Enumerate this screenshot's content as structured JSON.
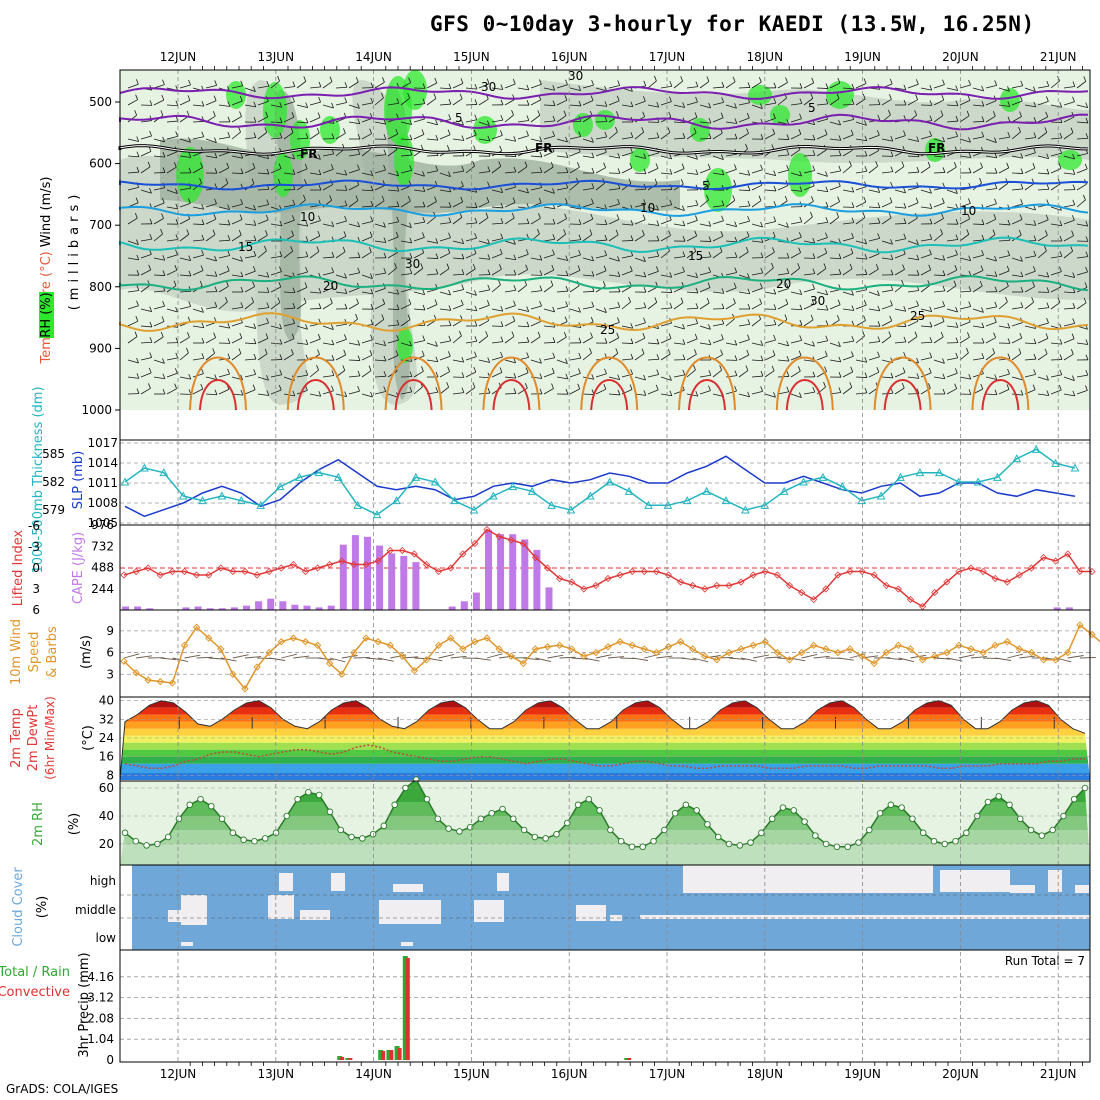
{
  "title": "GFS 0~10day 3-hourly for KAEDI (13.5W, 16.25N)",
  "footer": "GrADS: COLA/IGES",
  "colors": {
    "rh_fill": "#2ee82e",
    "temp_label": "#e05a3a",
    "wind_label": "#2a2aa0",
    "thickness": "#22b5c0",
    "slp": "#1a3acc",
    "lifted_index": "#e03838",
    "cape": "#c07ae8",
    "wind10m": "#e0962a",
    "temp_label_2m": "#e03838",
    "rh2m": "#3aa83a",
    "cloud": "#6fa8d8",
    "precip_total": "#2ea82e",
    "precip_conv": "#e03030"
  },
  "chart_data": [
    {
      "type": "heatmap",
      "panel": "upper-air",
      "ylabel_parts": [
        "RH (%)",
        "Temperature (°C)",
        "Wind (m/s)",
        "(millibars)"
      ],
      "ylim": [
        1000,
        450
      ],
      "yticks": [
        "500",
        "600",
        "700",
        "800",
        "900",
        "1000"
      ],
      "x_dates": [
        "12JUN",
        "13JUN",
        "14JUN",
        "15JUN",
        "16JUN",
        "17JUN",
        "18JUN",
        "19JUN",
        "20JUN",
        "21JUN"
      ],
      "contour_labels": [
        "FR",
        "FR",
        "FR",
        "5",
        "5",
        "5",
        "10",
        "10",
        "10",
        "15",
        "15",
        "20",
        "20",
        "25",
        "25",
        "30",
        "30",
        "30",
        "30"
      ]
    },
    {
      "type": "line",
      "panel": "thickness-slp",
      "ylabel_left": "1000-500mb Thickness (dm)",
      "ylabel_right": "SLP (mb)",
      "yticks_left": [
        "579",
        "582",
        "585"
      ],
      "yticks_right": [
        "1005",
        "1008",
        "1011",
        "1014",
        "1017"
      ],
      "ylim_slp": [
        1005,
        1017
      ],
      "series": [
        {
          "name": "SLP",
          "values": [
            1007.5,
            1006.0,
            1007.0,
            1008.0,
            1009.5,
            1010.5,
            1009.5,
            1007.5,
            1008.5,
            1011.0,
            1013.0,
            1014.5,
            1012.5,
            1010.5,
            1010.0,
            1010.5,
            1010.0,
            1008.5,
            1009.0,
            1010.5,
            1011.0,
            1010.5,
            1011.5,
            1011.0,
            1011.5,
            1012.5,
            1012.0,
            1011.0,
            1011.0,
            1012.5,
            1013.5,
            1015.0,
            1013.0,
            1011.0,
            1011.0,
            1012.0,
            1011.0,
            1010.0,
            1009.5,
            1010.5,
            1011.0,
            1009.0,
            1009.5,
            1011.0,
            1011.0,
            1009.5,
            1009.0,
            1010.0,
            1009.5,
            1009.0
          ]
        },
        {
          "name": "Thickness",
          "values": [
            582.0,
            583.5,
            583.0,
            580.5,
            580.0,
            580.5,
            580.0,
            579.5,
            581.5,
            582.5,
            583.0,
            582.5,
            579.5,
            578.5,
            580.0,
            582.5,
            582.0,
            580.0,
            579.0,
            580.5,
            581.5,
            581.0,
            579.5,
            579.0,
            580.5,
            582.0,
            581.0,
            579.5,
            579.5,
            580.0,
            581.0,
            580.0,
            579.0,
            579.5,
            581.0,
            582.0,
            582.5,
            581.5,
            580.0,
            580.5,
            582.5,
            583.0,
            583.0,
            582.0,
            582.0,
            582.5,
            584.5,
            585.5,
            584.0,
            583.5
          ]
        }
      ]
    },
    {
      "type": "bar",
      "panel": "lifted-index-cape",
      "ylabel_left": "Lifted Index",
      "ylabel_right": "CAPE (J/kg)",
      "yticks_left": [
        "-6",
        "-3",
        "0",
        "3",
        "6"
      ],
      "yticks_right": [
        "244",
        "488",
        "732",
        "976"
      ],
      "series": [
        {
          "name": "CAPE",
          "values": [
            40,
            40,
            20,
            0,
            0,
            30,
            40,
            20,
            20,
            30,
            50,
            100,
            130,
            100,
            60,
            50,
            30,
            50,
            750,
            860,
            840,
            740,
            650,
            620,
            550,
            0,
            0,
            40,
            100,
            200,
            920,
            870,
            870,
            810,
            690,
            260,
            0,
            0,
            0,
            0,
            0,
            0,
            0,
            0,
            0,
            0,
            0,
            0,
            0,
            0,
            0,
            0,
            0,
            0,
            0,
            0,
            0,
            0,
            0,
            0,
            0,
            0,
            0,
            0,
            0,
            0,
            0,
            0,
            0,
            0,
            0,
            0,
            0,
            0,
            0,
            0,
            0,
            30,
            30,
            0,
            0
          ]
        },
        {
          "name": "Lifted Index",
          "values": [
            1.0,
            0.5,
            0.0,
            1.0,
            0.5,
            0.5,
            1.0,
            1.0,
            0.0,
            0.5,
            0.5,
            1.0,
            0.5,
            0.0,
            -0.5,
            0.5,
            0.0,
            -0.5,
            -1.0,
            -0.5,
            -0.5,
            -1.0,
            -2.5,
            -2.5,
            -2.0,
            -0.5,
            0.5,
            0.0,
            -2.0,
            -3.5,
            -5.5,
            -4.5,
            -4.0,
            -3.5,
            -1.5,
            0.0,
            1.5,
            2.0,
            3.0,
            2.5,
            1.5,
            1.0,
            0.5,
            0.5,
            0.5,
            1.0,
            2.0,
            2.5,
            3.0,
            2.5,
            2.5,
            2.0,
            1.0,
            0.5,
            1.0,
            2.5,
            3.5,
            4.5,
            3.0,
            1.0,
            0.5,
            0.5,
            1.0,
            2.5,
            3.0,
            4.5,
            5.5,
            3.5,
            2.0,
            0.5,
            0.0,
            0.5,
            1.5,
            2.0,
            1.0,
            0.0,
            -1.5,
            -1.0,
            -2.0,
            0.5,
            0.5
          ]
        }
      ]
    },
    {
      "type": "line",
      "panel": "wind-10m",
      "ylabel": "10m Wind Speed & Barbs (m/s)",
      "yticks": [
        "3",
        "6",
        "9"
      ],
      "series": [
        {
          "name": "Speed",
          "values": [
            4.8,
            3.2,
            2.2,
            2.0,
            1.8,
            7.0,
            9.5,
            8.0,
            6.5,
            3.0,
            1.0,
            4.0,
            6.0,
            7.5,
            8.0,
            7.5,
            7.0,
            4.5,
            3.0,
            6.0,
            8.0,
            7.5,
            7.0,
            5.5,
            3.5,
            5.0,
            7.0,
            8.0,
            6.5,
            7.5,
            8.0,
            6.5,
            5.5,
            4.5,
            6.5,
            6.8,
            7.0,
            6.5,
            5.5,
            6.0,
            6.8,
            7.5,
            7.0,
            6.5,
            6.0,
            6.8,
            7.5,
            6.5,
            5.5,
            5.0,
            6.0,
            6.5,
            7.0,
            7.5,
            6.0,
            5.0,
            6.0,
            7.0,
            6.5,
            6.0,
            6.5,
            5.5,
            4.5,
            6.0,
            7.0,
            6.5,
            5.0,
            5.5,
            6.0,
            7.0,
            6.5,
            6.0,
            7.0,
            7.5,
            6.5,
            6.0,
            5.0,
            5.0,
            6.0,
            9.8,
            8.5,
            7.0
          ]
        }
      ]
    },
    {
      "type": "area",
      "panel": "temp-2m",
      "ylabel": "2m Temp 2m DewPt (6hr Min/Max) (°C)",
      "yticks": [
        "8",
        "16",
        "24",
        "32",
        "40"
      ],
      "ylim": [
        6,
        42
      ],
      "series": [
        {
          "name": "2m Temp",
          "values": [
            31,
            34,
            38,
            40,
            39,
            35,
            30,
            29,
            32,
            36,
            39,
            40,
            37,
            32,
            29,
            28,
            31,
            36,
            39,
            40,
            37,
            32,
            29,
            28,
            31,
            36,
            39,
            40,
            37,
            32,
            28,
            28,
            31,
            36,
            39,
            40,
            37,
            32,
            28,
            28,
            31,
            36,
            39,
            40,
            37,
            32,
            28,
            28,
            31,
            36,
            39,
            40,
            37,
            32,
            28,
            28,
            31,
            36,
            39,
            40,
            37,
            32,
            28,
            28,
            31,
            36,
            39,
            40,
            38,
            32,
            28,
            28,
            31,
            36,
            39,
            40,
            38,
            32,
            28,
            26
          ]
        },
        {
          "name": "2m DewPt",
          "values": [
            13,
            12,
            11,
            11,
            12,
            14,
            15,
            17,
            18,
            18,
            17,
            16,
            17,
            18,
            19,
            19,
            18,
            17,
            18,
            20,
            21,
            20,
            18,
            17,
            16,
            15,
            14,
            14,
            15,
            16,
            16,
            15,
            14,
            13,
            14,
            15,
            15,
            14,
            13,
            12,
            12,
            13,
            14,
            14,
            13,
            12,
            12,
            11,
            11,
            12,
            12,
            12,
            12,
            11,
            11,
            11,
            12,
            12,
            12,
            12,
            11,
            11,
            12,
            12,
            12,
            12,
            12,
            11,
            11,
            12,
            12,
            12,
            13,
            13,
            13,
            13,
            14,
            14,
            15,
            15
          ]
        }
      ]
    },
    {
      "type": "area",
      "panel": "rh-2m",
      "ylabel": "2m RH (%)",
      "yticks": [
        "20",
        "40",
        "60"
      ],
      "ylim": [
        5,
        65
      ],
      "series": [
        {
          "name": "2m RH",
          "values": [
            28,
            22,
            19,
            20,
            25,
            38,
            48,
            52,
            47,
            38,
            28,
            23,
            22,
            24,
            28,
            40,
            52,
            57,
            55,
            43,
            30,
            25,
            24,
            27,
            33,
            48,
            60,
            66,
            52,
            38,
            31,
            29,
            32,
            38,
            42,
            45,
            38,
            30,
            25,
            24,
            27,
            35,
            48,
            52,
            44,
            30,
            22,
            18,
            18,
            22,
            30,
            42,
            48,
            44,
            34,
            25,
            20,
            19,
            21,
            28,
            38,
            46,
            44,
            36,
            26,
            20,
            18,
            18,
            21,
            30,
            42,
            48,
            46,
            38,
            28,
            22,
            20,
            22,
            28,
            40,
            50,
            54,
            48,
            38,
            30,
            26,
            30,
            40,
            52,
            60
          ]
        }
      ]
    },
    {
      "type": "heatmap",
      "panel": "cloud-cover",
      "ylabel": "Cloud Cover (%)",
      "categories": [
        "high",
        "middle",
        "low"
      ]
    },
    {
      "type": "bar",
      "panel": "precip",
      "ylabel": "3hr Precip (mm)",
      "legend_left": [
        "Total / Rain",
        "Convective"
      ],
      "yticks": [
        "0",
        "1.04",
        "2.08",
        "3.12",
        "4.16"
      ],
      "ylim": [
        0,
        5.2
      ],
      "annotation": "Run Total = 7",
      "series": [
        {
          "name": "Total",
          "bars": [
            [
              26,
              0.2
            ],
            [
              27,
              0.1
            ],
            [
              31,
              0.5
            ],
            [
              32,
              0.5
            ],
            [
              33,
              0.7
            ],
            [
              34,
              5.2
            ],
            [
              61,
              0.1
            ]
          ]
        },
        {
          "name": "Convective",
          "bars": [
            [
              26,
              0.15
            ],
            [
              27,
              0.1
            ],
            [
              31,
              0.45
            ],
            [
              32,
              0.5
            ],
            [
              33,
              0.6
            ],
            [
              34,
              5.1
            ],
            [
              61,
              0.1
            ]
          ]
        }
      ]
    }
  ]
}
